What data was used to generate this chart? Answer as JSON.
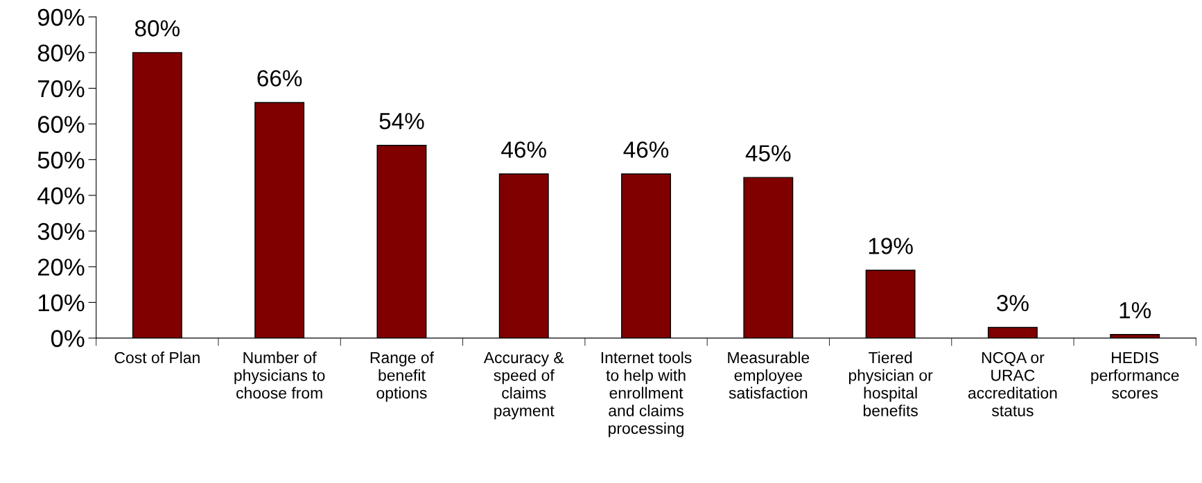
{
  "chart_data": {
    "type": "bar",
    "categories": [
      "Cost of Plan",
      "Number of\nphysicians to\nchoose from",
      "Range of\nbenefit\noptions",
      "Accuracy &\nspeed of\nclaims\npayment",
      "Internet tools\nto help with\nenrollment\nand claims\nprocessing",
      "Measurable\nemployee\nsatisfaction",
      "Tiered\nphysician or\nhospital\nbenefits",
      "NCQA or\nURAC\naccreditation\nstatus",
      "HEDIS\nperformance\nscores"
    ],
    "values": [
      80,
      66,
      54,
      46,
      46,
      45,
      19,
      3,
      1
    ],
    "value_labels": [
      "80%",
      "66%",
      "54%",
      "46%",
      "46%",
      "45%",
      "19%",
      "3%",
      "1%"
    ],
    "color": "#800000",
    "ylim": [
      0,
      90
    ],
    "yticks": [
      {
        "value": 0,
        "label": "0%"
      },
      {
        "value": 10,
        "label": "10%"
      },
      {
        "value": 20,
        "label": "20%"
      },
      {
        "value": 30,
        "label": "30%"
      },
      {
        "value": 40,
        "label": "40%"
      },
      {
        "value": 50,
        "label": "50%"
      },
      {
        "value": 60,
        "label": "60%"
      },
      {
        "value": 70,
        "label": "70%"
      },
      {
        "value": 80,
        "label": "80%"
      },
      {
        "value": 90,
        "label": "90%"
      }
    ],
    "grid": false,
    "legend": false
  }
}
